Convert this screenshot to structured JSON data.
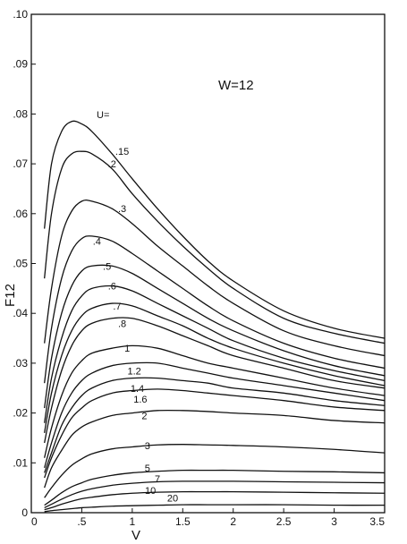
{
  "chart_data": {
    "type": "line",
    "title": "",
    "annotation": "W=12",
    "legend_label": "U=",
    "xlabel": "V",
    "ylabel": "F12",
    "xlim": [
      0,
      3.5
    ],
    "ylim": [
      0,
      0.1
    ],
    "x_ticks": [
      "0",
      ".5",
      "1",
      "1.5",
      "2",
      "2.5",
      "3",
      "3.5"
    ],
    "y_ticks": [
      "0",
      ".01",
      ".02",
      ".03",
      ".04",
      ".05",
      ".06",
      ".07",
      ".08",
      ".09",
      ".10"
    ],
    "grid": false,
    "series": [
      {
        "name": ".15",
        "label_at": [
          0.9,
          0.0725
        ],
        "points": [
          [
            0.13,
            0.057
          ],
          [
            0.2,
            0.07
          ],
          [
            0.3,
            0.0765
          ],
          [
            0.4,
            0.0785
          ],
          [
            0.5,
            0.078
          ],
          [
            0.6,
            0.0765
          ],
          [
            0.8,
            0.072
          ],
          [
            1.0,
            0.067
          ],
          [
            1.25,
            0.061
          ],
          [
            1.5,
            0.0555
          ],
          [
            1.75,
            0.0505
          ],
          [
            2.0,
            0.0465
          ],
          [
            2.5,
            0.0405
          ],
          [
            3.0,
            0.037
          ],
          [
            3.5,
            0.035
          ]
        ]
      },
      {
        "name": ".2",
        "label_at": [
          0.8,
          0.07
        ],
        "points": [
          [
            0.13,
            0.047
          ],
          [
            0.2,
            0.06
          ],
          [
            0.3,
            0.069
          ],
          [
            0.4,
            0.072
          ],
          [
            0.5,
            0.0725
          ],
          [
            0.6,
            0.072
          ],
          [
            0.8,
            0.069
          ],
          [
            1.0,
            0.064
          ],
          [
            1.25,
            0.0585
          ],
          [
            1.5,
            0.0535
          ],
          [
            1.75,
            0.049
          ],
          [
            2.0,
            0.045
          ],
          [
            2.5,
            0.039
          ],
          [
            3.0,
            0.036
          ],
          [
            3.5,
            0.034
          ]
        ]
      },
      {
        "name": ".3",
        "label_at": [
          0.9,
          0.061
        ],
        "points": [
          [
            0.13,
            0.034
          ],
          [
            0.2,
            0.045
          ],
          [
            0.3,
            0.0555
          ],
          [
            0.4,
            0.0605
          ],
          [
            0.5,
            0.0625
          ],
          [
            0.6,
            0.0625
          ],
          [
            0.8,
            0.061
          ],
          [
            1.0,
            0.058
          ],
          [
            1.25,
            0.0535
          ],
          [
            1.5,
            0.0495
          ],
          [
            1.75,
            0.0455
          ],
          [
            2.0,
            0.042
          ],
          [
            2.5,
            0.0365
          ],
          [
            3.0,
            0.0335
          ],
          [
            3.5,
            0.0315
          ]
        ]
      },
      {
        "name": ".4",
        "label_at": [
          0.65,
          0.0545
        ],
        "points": [
          [
            0.13,
            0.026
          ],
          [
            0.2,
            0.037
          ],
          [
            0.3,
            0.047
          ],
          [
            0.4,
            0.0525
          ],
          [
            0.5,
            0.055
          ],
          [
            0.6,
            0.0555
          ],
          [
            0.8,
            0.0545
          ],
          [
            1.0,
            0.052
          ],
          [
            1.25,
            0.0485
          ],
          [
            1.5,
            0.045
          ],
          [
            1.75,
            0.0415
          ],
          [
            2.0,
            0.0385
          ],
          [
            2.5,
            0.034
          ],
          [
            3.0,
            0.031
          ],
          [
            3.5,
            0.029
          ]
        ]
      },
      {
        "name": ".5",
        "label_at": [
          0.75,
          0.0495
        ],
        "points": [
          [
            0.13,
            0.021
          ],
          [
            0.2,
            0.031
          ],
          [
            0.3,
            0.04
          ],
          [
            0.4,
            0.0455
          ],
          [
            0.5,
            0.0485
          ],
          [
            0.6,
            0.0495
          ],
          [
            0.8,
            0.0495
          ],
          [
            1.0,
            0.048
          ],
          [
            1.25,
            0.045
          ],
          [
            1.5,
            0.042
          ],
          [
            1.75,
            0.039
          ],
          [
            2.0,
            0.0365
          ],
          [
            2.5,
            0.0325
          ],
          [
            3.0,
            0.0295
          ],
          [
            3.5,
            0.0275
          ]
        ]
      },
      {
        "name": ".6",
        "label_at": [
          0.8,
          0.0455
        ],
        "points": [
          [
            0.13,
            0.018
          ],
          [
            0.2,
            0.027
          ],
          [
            0.3,
            0.035
          ],
          [
            0.4,
            0.0405
          ],
          [
            0.5,
            0.0435
          ],
          [
            0.6,
            0.045
          ],
          [
            0.8,
            0.0455
          ],
          [
            1.0,
            0.0445
          ],
          [
            1.25,
            0.042
          ],
          [
            1.5,
            0.0395
          ],
          [
            1.75,
            0.037
          ],
          [
            2.0,
            0.0345
          ],
          [
            2.5,
            0.031
          ],
          [
            3.0,
            0.0285
          ],
          [
            3.5,
            0.0265
          ]
        ]
      },
      {
        "name": ".7",
        "label_at": [
          0.85,
          0.0415
        ],
        "points": [
          [
            0.13,
            0.016
          ],
          [
            0.2,
            0.024
          ],
          [
            0.3,
            0.0315
          ],
          [
            0.4,
            0.0365
          ],
          [
            0.5,
            0.0395
          ],
          [
            0.6,
            0.041
          ],
          [
            0.8,
            0.042
          ],
          [
            1.0,
            0.0415
          ],
          [
            1.25,
            0.0395
          ],
          [
            1.5,
            0.0375
          ],
          [
            1.75,
            0.035
          ],
          [
            2.0,
            0.033
          ],
          [
            2.5,
            0.03
          ],
          [
            3.0,
            0.0275
          ],
          [
            3.5,
            0.0255
          ]
        ]
      },
      {
        "name": ".8",
        "label_at": [
          0.9,
          0.038
        ],
        "points": [
          [
            0.13,
            0.014
          ],
          [
            0.2,
            0.021
          ],
          [
            0.3,
            0.0285
          ],
          [
            0.4,
            0.0335
          ],
          [
            0.5,
            0.0365
          ],
          [
            0.6,
            0.038
          ],
          [
            0.8,
            0.039
          ],
          [
            1.0,
            0.039
          ],
          [
            1.25,
            0.0375
          ],
          [
            1.5,
            0.0355
          ],
          [
            1.75,
            0.0335
          ],
          [
            2.0,
            0.0315
          ],
          [
            2.5,
            0.029
          ],
          [
            3.0,
            0.0265
          ],
          [
            3.5,
            0.025
          ]
        ]
      },
      {
        "name": "1",
        "label_at": [
          0.95,
          0.033
        ],
        "points": [
          [
            0.13,
            0.011
          ],
          [
            0.2,
            0.017
          ],
          [
            0.3,
            0.0235
          ],
          [
            0.4,
            0.028
          ],
          [
            0.5,
            0.0305
          ],
          [
            0.6,
            0.032
          ],
          [
            0.8,
            0.033
          ],
          [
            1.0,
            0.0335
          ],
          [
            1.25,
            0.033
          ],
          [
            1.5,
            0.0315
          ],
          [
            1.75,
            0.03
          ],
          [
            2.0,
            0.029
          ],
          [
            2.5,
            0.027
          ],
          [
            3.0,
            0.025
          ],
          [
            3.5,
            0.0235
          ]
        ]
      },
      {
        "name": "1.2",
        "label_at": [
          1.02,
          0.0285
        ],
        "points": [
          [
            0.13,
            0.009
          ],
          [
            0.2,
            0.014
          ],
          [
            0.3,
            0.02
          ],
          [
            0.4,
            0.024
          ],
          [
            0.5,
            0.0265
          ],
          [
            0.6,
            0.028
          ],
          [
            0.8,
            0.0295
          ],
          [
            1.0,
            0.03
          ],
          [
            1.25,
            0.03
          ],
          [
            1.5,
            0.029
          ],
          [
            1.75,
            0.028
          ],
          [
            2.0,
            0.027
          ],
          [
            2.5,
            0.0255
          ],
          [
            3.0,
            0.024
          ],
          [
            3.5,
            0.0225
          ]
        ]
      },
      {
        "name": "1.4",
        "label_at": [
          1.05,
          0.025
        ],
        "points": [
          [
            0.13,
            0.008
          ],
          [
            0.2,
            0.012
          ],
          [
            0.3,
            0.0175
          ],
          [
            0.4,
            0.021
          ],
          [
            0.5,
            0.0235
          ],
          [
            0.6,
            0.025
          ],
          [
            0.8,
            0.0265
          ],
          [
            1.0,
            0.027
          ],
          [
            1.25,
            0.027
          ],
          [
            1.5,
            0.0265
          ],
          [
            1.75,
            0.026
          ],
          [
            2.0,
            0.025
          ],
          [
            2.5,
            0.024
          ],
          [
            3.0,
            0.0225
          ],
          [
            3.5,
            0.0215
          ]
        ]
      },
      {
        "name": "1.6",
        "label_at": [
          1.08,
          0.0228
        ],
        "points": [
          [
            0.13,
            0.007
          ],
          [
            0.2,
            0.011
          ],
          [
            0.3,
            0.0155
          ],
          [
            0.4,
            0.019
          ],
          [
            0.5,
            0.021
          ],
          [
            0.6,
            0.0225
          ],
          [
            0.8,
            0.024
          ],
          [
            1.0,
            0.0245
          ],
          [
            1.25,
            0.0248
          ],
          [
            1.5,
            0.0245
          ],
          [
            1.75,
            0.024
          ],
          [
            2.0,
            0.0235
          ],
          [
            2.5,
            0.0225
          ],
          [
            3.0,
            0.0212
          ],
          [
            3.5,
            0.0205
          ]
        ]
      },
      {
        "name": "2",
        "label_at": [
          1.12,
          0.0195
        ],
        "points": [
          [
            0.13,
            0.005
          ],
          [
            0.2,
            0.009
          ],
          [
            0.3,
            0.0125
          ],
          [
            0.4,
            0.0155
          ],
          [
            0.5,
            0.0172
          ],
          [
            0.6,
            0.0182
          ],
          [
            0.8,
            0.0195
          ],
          [
            1.0,
            0.02
          ],
          [
            1.25,
            0.0205
          ],
          [
            1.5,
            0.0205
          ],
          [
            1.75,
            0.0203
          ],
          [
            2.0,
            0.02
          ],
          [
            2.5,
            0.0195
          ],
          [
            3.0,
            0.0185
          ],
          [
            3.5,
            0.018
          ]
        ]
      },
      {
        "name": "3",
        "label_at": [
          1.15,
          0.0135
        ],
        "points": [
          [
            0.13,
            0.003
          ],
          [
            0.2,
            0.005
          ],
          [
            0.3,
            0.0075
          ],
          [
            0.4,
            0.0095
          ],
          [
            0.5,
            0.0108
          ],
          [
            0.6,
            0.0118
          ],
          [
            0.8,
            0.0128
          ],
          [
            1.0,
            0.0132
          ],
          [
            1.25,
            0.0136
          ],
          [
            1.5,
            0.0137
          ],
          [
            1.75,
            0.0136
          ],
          [
            2.0,
            0.0135
          ],
          [
            2.5,
            0.0132
          ],
          [
            3.0,
            0.0127
          ],
          [
            3.5,
            0.012
          ]
        ]
      },
      {
        "name": "5",
        "label_at": [
          1.15,
          0.009
        ],
        "points": [
          [
            0.13,
            0.0015
          ],
          [
            0.2,
            0.0025
          ],
          [
            0.3,
            0.004
          ],
          [
            0.4,
            0.0052
          ],
          [
            0.5,
            0.006
          ],
          [
            0.6,
            0.0067
          ],
          [
            0.8,
            0.0075
          ],
          [
            1.0,
            0.008
          ],
          [
            1.25,
            0.0083
          ],
          [
            1.5,
            0.0085
          ],
          [
            1.75,
            0.0085
          ],
          [
            2.0,
            0.0085
          ],
          [
            2.5,
            0.0083
          ],
          [
            3.0,
            0.0082
          ],
          [
            3.5,
            0.008
          ]
        ]
      },
      {
        "name": "7",
        "label_at": [
          1.25,
          0.0068
        ],
        "points": [
          [
            0.13,
            0.001
          ],
          [
            0.2,
            0.0017
          ],
          [
            0.3,
            0.0027
          ],
          [
            0.4,
            0.0036
          ],
          [
            0.5,
            0.0043
          ],
          [
            0.6,
            0.0048
          ],
          [
            0.8,
            0.0055
          ],
          [
            1.0,
            0.0059
          ],
          [
            1.25,
            0.0062
          ],
          [
            1.5,
            0.0063
          ],
          [
            1.75,
            0.0063
          ],
          [
            2.0,
            0.0063
          ],
          [
            2.5,
            0.0062
          ],
          [
            3.0,
            0.0061
          ],
          [
            3.5,
            0.006
          ]
        ]
      },
      {
        "name": "10",
        "label_at": [
          1.18,
          0.0045
        ],
        "points": [
          [
            0.13,
            0.0006
          ],
          [
            0.2,
            0.001
          ],
          [
            0.3,
            0.0017
          ],
          [
            0.4,
            0.0023
          ],
          [
            0.5,
            0.0028
          ],
          [
            0.6,
            0.0031
          ],
          [
            0.8,
            0.0036
          ],
          [
            1.0,
            0.0039
          ],
          [
            1.25,
            0.0041
          ],
          [
            1.5,
            0.0042
          ],
          [
            1.75,
            0.0042
          ],
          [
            2.0,
            0.0042
          ],
          [
            2.5,
            0.0041
          ],
          [
            3.0,
            0.004
          ],
          [
            3.5,
            0.0039
          ]
        ]
      },
      {
        "name": "20",
        "label_at": [
          1.4,
          0.003
        ],
        "points": [
          [
            0.13,
            0.0002
          ],
          [
            0.2,
            0.0004
          ],
          [
            0.3,
            0.0006
          ],
          [
            0.4,
            0.0008
          ],
          [
            0.5,
            0.001
          ],
          [
            0.6,
            0.0011
          ],
          [
            0.8,
            0.0013
          ],
          [
            1.0,
            0.0014
          ],
          [
            1.25,
            0.0015
          ],
          [
            1.5,
            0.0016
          ],
          [
            1.75,
            0.0016
          ],
          [
            2.0,
            0.0016
          ],
          [
            2.5,
            0.0016
          ],
          [
            3.0,
            0.0015
          ],
          [
            3.5,
            0.0015
          ]
        ]
      }
    ]
  }
}
